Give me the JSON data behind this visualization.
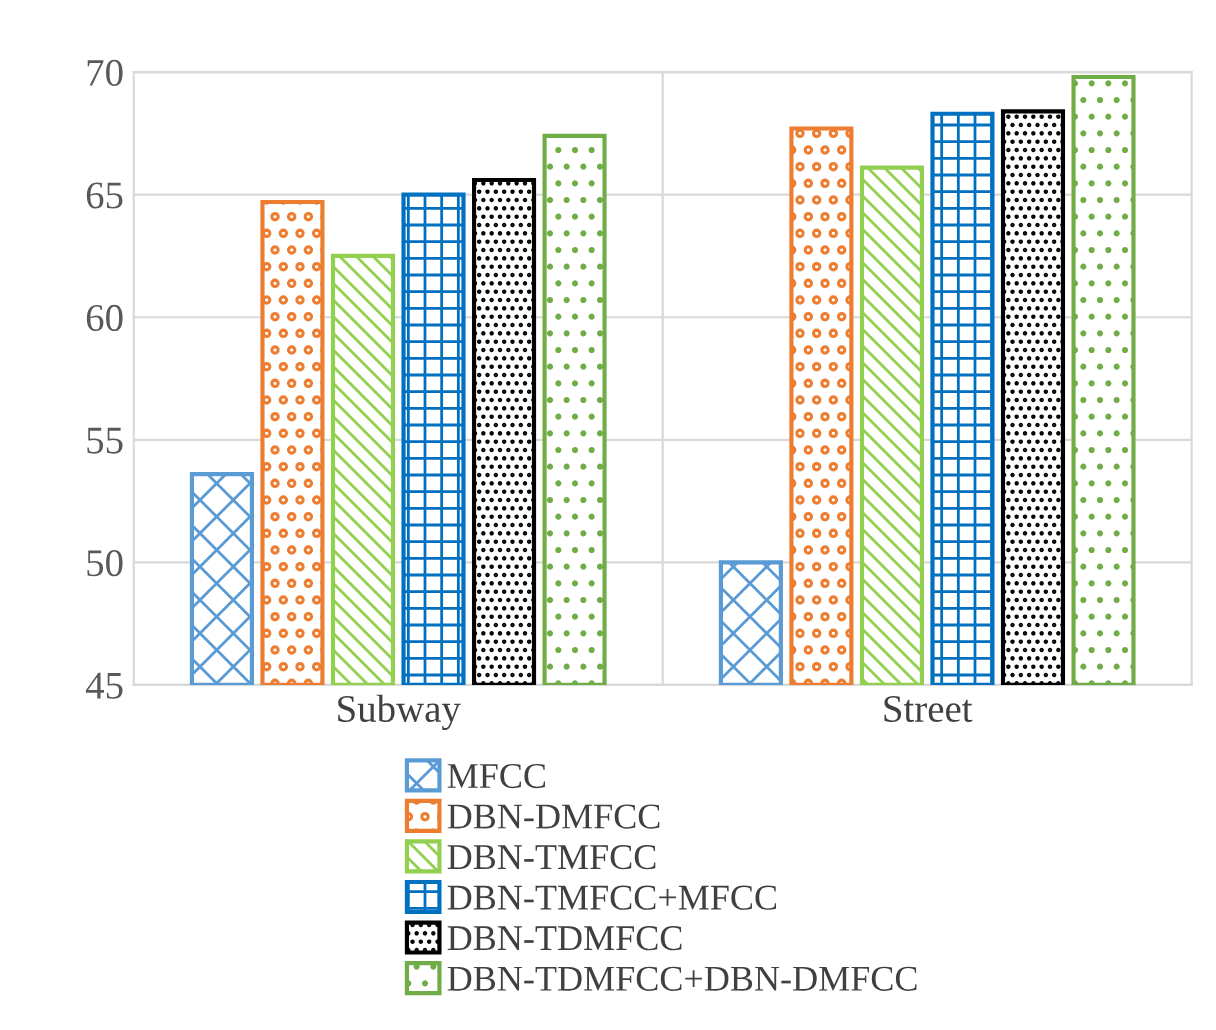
{
  "chart_data": {
    "type": "bar",
    "categories": [
      "Subway",
      "Street"
    ],
    "series": [
      {
        "name": "MFCC",
        "color": "#5b9bd5",
        "values": [
          53.6,
          50.0
        ]
      },
      {
        "name": "DBN-DMFCC",
        "color": "#ed7d31",
        "values": [
          64.7,
          67.7
        ]
      },
      {
        "name": "DBN-TMFCC",
        "color": "#92d050",
        "values": [
          62.5,
          66.1
        ]
      },
      {
        "name": "DBN-TMFCC+MFCC",
        "color": "#0070c0",
        "values": [
          65.0,
          68.3
        ]
      },
      {
        "name": "DBN-TDMFCC",
        "color": "#000000",
        "values": [
          65.6,
          68.4
        ]
      },
      {
        "name": "DBN-TDMFCC+DBN-DMFCC",
        "color": "#70ad47",
        "values": [
          67.4,
          69.8
        ]
      }
    ],
    "ylim": [
      45,
      70
    ],
    "yticks": [
      45,
      50,
      55,
      60,
      65,
      70
    ],
    "grid": true,
    "legend": "bottom"
  }
}
